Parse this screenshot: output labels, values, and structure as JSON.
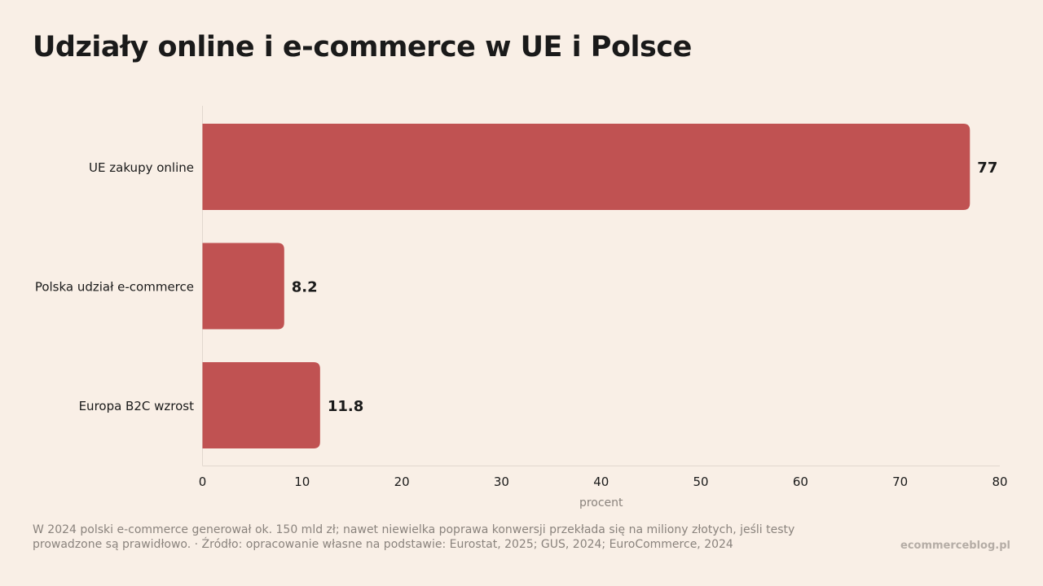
{
  "title": "Udziały online i e-commerce w UE i Polsce",
  "chart_data": {
    "type": "bar",
    "orientation": "horizontal",
    "categories": [
      "UE zakupy online",
      "Polska udział e-commerce",
      "Europa B2C wzrost"
    ],
    "values": [
      77,
      8.2,
      11.8
    ],
    "value_labels": [
      "77",
      "8.2",
      "11.8"
    ],
    "xlabel": "procent",
    "xlim": [
      0,
      80
    ],
    "xticks": [
      0,
      10,
      20,
      30,
      40,
      50,
      60,
      70,
      80
    ],
    "grid": false,
    "bar_color": "#c05252"
  },
  "footer": {
    "note": "W 2024 polski e-commerce generował ok. 150 mld zł; nawet niewielka poprawa konwersji przekłada się na miliony złotych, jeśli testy prowadzone są prawidłowo. · Źródło: opracowanie własne na podstawie: Eurostat, 2025; GUS, 2024; EuroCommerce, 2024",
    "brand": "ecommerceblog.pl"
  }
}
